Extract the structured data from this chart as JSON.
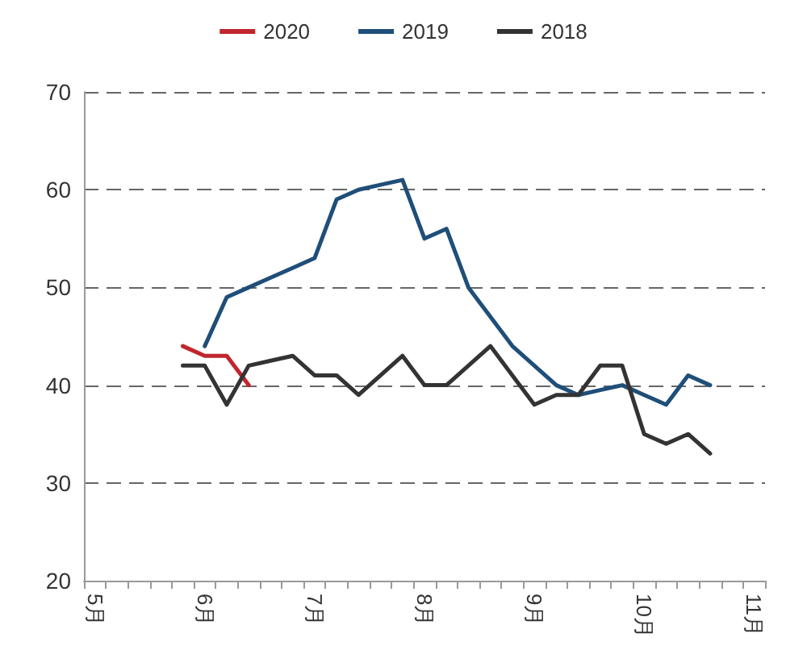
{
  "chart_data": {
    "type": "line",
    "categories": [
      "5月",
      null,
      null,
      null,
      null,
      "6月",
      null,
      null,
      null,
      null,
      "7月",
      null,
      null,
      null,
      null,
      "8月",
      null,
      null,
      null,
      null,
      "9月",
      null,
      null,
      null,
      null,
      "10月",
      null,
      null,
      null,
      null,
      "11月"
    ],
    "series": [
      {
        "name": "2020",
        "color": "#c0262d",
        "values": [
          null,
          null,
          null,
          null,
          44,
          43,
          43,
          40,
          null,
          null,
          null,
          null,
          null,
          null,
          null,
          null,
          null,
          null,
          null,
          null,
          null,
          null,
          null,
          null,
          null,
          null,
          null,
          null,
          null,
          null,
          null
        ]
      },
      {
        "name": "2019",
        "color": "#1f4e79",
        "values": [
          null,
          null,
          null,
          null,
          null,
          44,
          49,
          50,
          51,
          52,
          53,
          59,
          60,
          60.5,
          61,
          55,
          56,
          50,
          47,
          44,
          42,
          40,
          39,
          39.5,
          40,
          39,
          38,
          41,
          40,
          null,
          null
        ]
      },
      {
        "name": "2018",
        "color": "#333333",
        "values": [
          null,
          null,
          null,
          null,
          42,
          42,
          38,
          42,
          42.5,
          43,
          41,
          41,
          39,
          41,
          43,
          40,
          40,
          42,
          44,
          41,
          38,
          39,
          39,
          42,
          42,
          35,
          34,
          35,
          33,
          null,
          null
        ]
      }
    ],
    "ylim": [
      20,
      70
    ],
    "yticks": [
      20,
      30,
      40,
      50,
      60,
      70
    ],
    "grid": "y",
    "legend": "top",
    "marker": "none",
    "line_style": "solid"
  }
}
